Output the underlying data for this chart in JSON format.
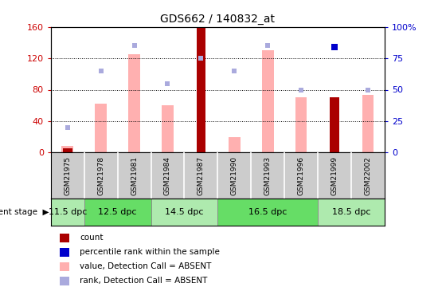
{
  "title": "GDS662 / 140832_at",
  "samples": [
    "GSM21975",
    "GSM21978",
    "GSM21981",
    "GSM21984",
    "GSM21987",
    "GSM21990",
    "GSM21993",
    "GSM21996",
    "GSM21999",
    "GSM22002"
  ],
  "count_values": [
    5,
    0,
    0,
    0,
    160,
    0,
    0,
    0,
    70,
    0
  ],
  "pink_bar_values": [
    8,
    62,
    125,
    60,
    0,
    20,
    130,
    70,
    0,
    73
  ],
  "blue_dot_values": [
    20,
    65,
    85,
    55,
    75,
    65,
    85,
    50,
    0,
    50
  ],
  "blue_dot_present": [
    true,
    true,
    true,
    true,
    true,
    true,
    true,
    true,
    false,
    true
  ],
  "blue_sq_values": [
    0,
    0,
    0,
    0,
    0,
    0,
    0,
    0,
    84,
    0
  ],
  "blue_sq_present": [
    false,
    false,
    false,
    false,
    false,
    false,
    false,
    false,
    true,
    false
  ],
  "dev_stage_data": [
    {
      "label": "11.5 dpc",
      "start": 0,
      "end": 1,
      "color": "#aeeaae"
    },
    {
      "label": "12.5 dpc",
      "start": 1,
      "end": 3,
      "color": "#66dd66"
    },
    {
      "label": "14.5 dpc",
      "start": 3,
      "end": 5,
      "color": "#aeeaae"
    },
    {
      "label": "16.5 dpc",
      "start": 5,
      "end": 8,
      "color": "#66dd66"
    },
    {
      "label": "18.5 dpc",
      "start": 8,
      "end": 10,
      "color": "#aeeaae"
    }
  ],
  "ylim_left": [
    0,
    160
  ],
  "ylim_right": [
    0,
    100
  ],
  "left_yticks": [
    0,
    40,
    80,
    120,
    160
  ],
  "right_yticks": [
    0,
    25,
    50,
    75,
    100
  ],
  "left_color": "#cc0000",
  "right_color": "#0000cc",
  "pink_bar_color": "#ffb0b0",
  "dark_red_color": "#aa0000",
  "blue_dot_color": "#aaaadd",
  "blue_sq_color": "#0000cc",
  "sample_bg": "#cccccc",
  "legend_entries": [
    {
      "color": "#aa0000",
      "label": "count"
    },
    {
      "color": "#0000cc",
      "label": "percentile rank within the sample"
    },
    {
      "color": "#ffb0b0",
      "label": "value, Detection Call = ABSENT"
    },
    {
      "color": "#aaaadd",
      "label": "rank, Detection Call = ABSENT"
    }
  ]
}
